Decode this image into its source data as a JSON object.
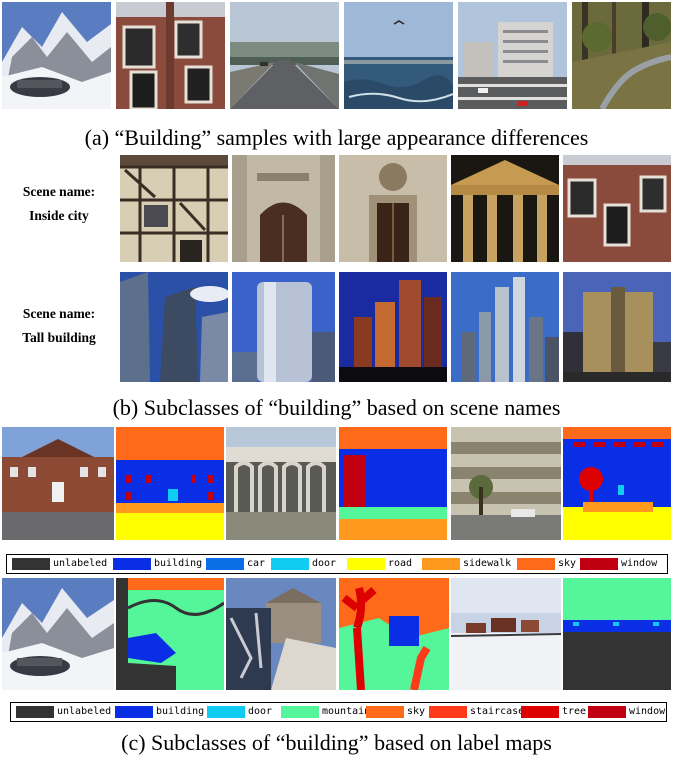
{
  "captions": {
    "a": "(a) “Building” samples with large appearance differences",
    "b": "(b) Subclasses of “building” based on scene names",
    "c": "(c) Subclasses of “building” based on label maps"
  },
  "scene_labels": {
    "inside_city": [
      "Scene name:",
      "Inside city"
    ],
    "tall_building": [
      "Scene name:",
      "Tall building"
    ]
  },
  "legend1": [
    {
      "label": "unlabeled",
      "color": "#333333"
    },
    {
      "label": "building",
      "color": "#0a2de6"
    },
    {
      "label": "car",
      "color": "#0a6ee6"
    },
    {
      "label": "door",
      "color": "#11ccf2"
    },
    {
      "label": "road",
      "color": "#ffff00"
    },
    {
      "label": "sidewalk",
      "color": "#ff9a1e"
    },
    {
      "label": "sky",
      "color": "#ff6a1a"
    },
    {
      "label": "window",
      "color": "#c00010"
    }
  ],
  "legend2": [
    {
      "label": "unlabeled",
      "color": "#333333"
    },
    {
      "label": "building",
      "color": "#0a2de6"
    },
    {
      "label": "door",
      "color": "#11ccf2"
    },
    {
      "label": "mountain",
      "color": "#55f59a"
    },
    {
      "label": "sky",
      "color": "#ff6a1a"
    },
    {
      "label": "staircase",
      "color": "#ff3a1a"
    },
    {
      "label": "tree",
      "color": "#dd0000"
    },
    {
      "label": "window",
      "color": "#c00010"
    }
  ]
}
